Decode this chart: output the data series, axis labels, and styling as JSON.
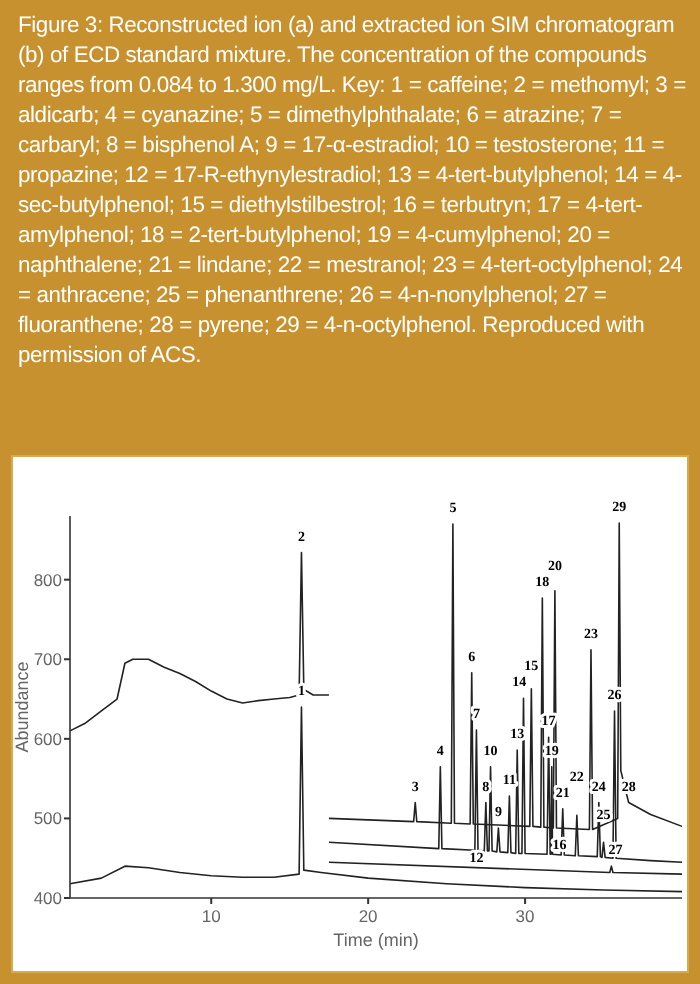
{
  "chart_data": {
    "type": "line",
    "title": "Figure 3: Reconstructed ion (a) and extracted ion SIM chromatogram (b) of ECD standard mixture. The concentration of the compounds ranges from 0.084 to 1.300 mg/L. Key: 1 = caffeine; 2 = methomyl; 3 = aldicarb; 4 = cyanazine; 5 = dimethylphthalate; 6 = atrazine; 7 = carbaryl; 8 = bisphenol A; 9 = 17-α-estradiol; 10 = testosterone; 11 = propazine; 12 = 17-R-ethynylestradiol; 13 = 4-tert-butylphenol; 14 = 4-sec-butylphenol; 15 = diethylstilbestrol; 16 = terbutryn; 17 = 4-tert-amylphenol; 18 = 2-tert-butylphenol; 19 = 4-cumylphenol; 20 = naphthalene; 21 = lindane; 22 = mestranol; 23 = 4-tert-octylphenol; 24 = anthracene; 25 = phenanthrene; 26 = 4-n-nonylphenol; 27 = fluoranthene; 28 = pyrene; 29 = 4-n-octylphenol. Reproduced with permission of ACS.",
    "xlabel": "Time (min)",
    "ylabel": "Abundance",
    "xlim": [
      1,
      40
    ],
    "ylim": [
      400,
      880
    ],
    "xticks": [
      10,
      20,
      30
    ],
    "yticks": [
      400,
      500,
      600,
      700,
      800
    ],
    "series": [
      {
        "color": "#222222",
        "x": [
          1,
          2,
          3,
          4,
          4.5,
          5,
          6,
          7,
          8,
          9,
          10,
          11,
          12,
          13,
          14,
          15,
          15.6,
          15.75,
          15.9,
          16.5,
          17.5
        ],
        "values": [
          610,
          620,
          635,
          650,
          695,
          700,
          700,
          690,
          682,
          672,
          660,
          650,
          645,
          648,
          650,
          652,
          655,
          834,
          662,
          655,
          655
        ]
      },
      {
        "color": "#222222",
        "x": [
          1,
          3,
          4.5,
          6,
          8,
          10,
          12,
          14,
          15.6,
          15.75,
          15.9,
          17,
          20,
          25,
          30,
          35,
          40
        ],
        "values": [
          418,
          425,
          440,
          438,
          432,
          428,
          426,
          426,
          430,
          640,
          435,
          432,
          425,
          418,
          413,
          410,
          408
        ]
      },
      {
        "color": "#222222",
        "x": [
          17.5,
          22.9,
          23,
          23.1,
          25.3,
          25.4,
          25.5,
          26.5,
          26.6,
          26.7,
          30.3,
          30.4,
          30.5,
          31,
          31.1,
          31.2,
          31.8,
          31.9,
          32,
          34.1,
          34.2,
          34.3,
          35.9,
          36,
          36.1,
          36.6,
          38,
          40
        ],
        "values": [
          500,
          496,
          520,
          496,
          494,
          870,
          494,
          493,
          683,
          493,
          490,
          663,
          490,
          489,
          777,
          489,
          488,
          786,
          488,
          486,
          712,
          486,
          500,
          871,
          560,
          520,
          505,
          490
        ]
      },
      {
        "color": "#222222",
        "x": [
          17.5,
          24.5,
          24.6,
          24.7,
          26.8,
          26.9,
          27,
          27.4,
          27.5,
          27.6,
          27.7,
          27.8,
          27.9,
          28.2,
          28.3,
          28.4,
          28.9,
          29,
          29.1,
          29.4,
          29.5,
          29.6,
          29.8,
          29.9,
          30,
          31.4,
          31.5,
          31.6,
          31.65,
          31.7,
          31.75,
          32.3,
          32.4,
          32.5,
          33.2,
          33.3,
          33.4,
          34.6,
          34.7,
          34.8,
          34.9,
          35,
          35.1,
          35.6,
          35.7,
          35.8,
          38,
          40
        ],
        "values": [
          470,
          462,
          565,
          462,
          460,
          611,
          460,
          459,
          520,
          459,
          459,
          565,
          459,
          458,
          488,
          458,
          457,
          528,
          457,
          456,
          586,
          456,
          456,
          651,
          456,
          455,
          602,
          455,
          455,
          565,
          455,
          454,
          512,
          454,
          453,
          504,
          453,
          452,
          520,
          452,
          451,
          470,
          451,
          450,
          635,
          450,
          447,
          445
        ]
      },
      {
        "color": "#222222",
        "x": [
          17.5,
          35.4,
          35.5,
          35.6,
          40
        ],
        "values": [
          445,
          432,
          440,
          432,
          430
        ]
      }
    ],
    "annotations": [
      {
        "text": "1",
        "x": 15.75,
        "y": 640
      },
      {
        "text": "2",
        "x": 15.75,
        "y": 834
      },
      {
        "text": "3",
        "x": 23,
        "y": 520
      },
      {
        "text": "4",
        "x": 24.6,
        "y": 565
      },
      {
        "text": "5",
        "x": 25.4,
        "y": 870
      },
      {
        "text": "6",
        "x": 26.6,
        "y": 683
      },
      {
        "text": "7",
        "x": 26.9,
        "y": 611
      },
      {
        "text": "8",
        "x": 27.5,
        "y": 520
      },
      {
        "text": "9",
        "x": 28.3,
        "y": 488
      },
      {
        "text": "10",
        "x": 27.8,
        "y": 565
      },
      {
        "text": "11",
        "x": 29,
        "y": 528
      },
      {
        "text": "12",
        "x": 26.9,
        "y": 418
      },
      {
        "text": "13",
        "x": 29.5,
        "y": 586
      },
      {
        "text": "14",
        "x": 29.9,
        "y": 651
      },
      {
        "text": "15",
        "x": 30.4,
        "y": 663
      },
      {
        "text": "16",
        "x": 32.2,
        "y": 413
      },
      {
        "text": "17",
        "x": 31.5,
        "y": 602
      },
      {
        "text": "18",
        "x": 31.1,
        "y": 777
      },
      {
        "text": "19",
        "x": 31.7,
        "y": 565
      },
      {
        "text": "20",
        "x": 31.9,
        "y": 786
      },
      {
        "text": "21",
        "x": 32.4,
        "y": 512
      },
      {
        "text": "22",
        "x": 33.3,
        "y": 504
      },
      {
        "text": "23",
        "x": 34.2,
        "y": 712
      },
      {
        "text": "24",
        "x": 34.7,
        "y": 520
      },
      {
        "text": "25",
        "x": 35,
        "y": 470
      },
      {
        "text": "26",
        "x": 35.7,
        "y": 635
      },
      {
        "text": "27",
        "x": 35.5,
        "y": 440
      },
      {
        "text": "28",
        "x": 36.6,
        "y": 520
      },
      {
        "text": "29",
        "x": 36,
        "y": 871
      }
    ]
  }
}
